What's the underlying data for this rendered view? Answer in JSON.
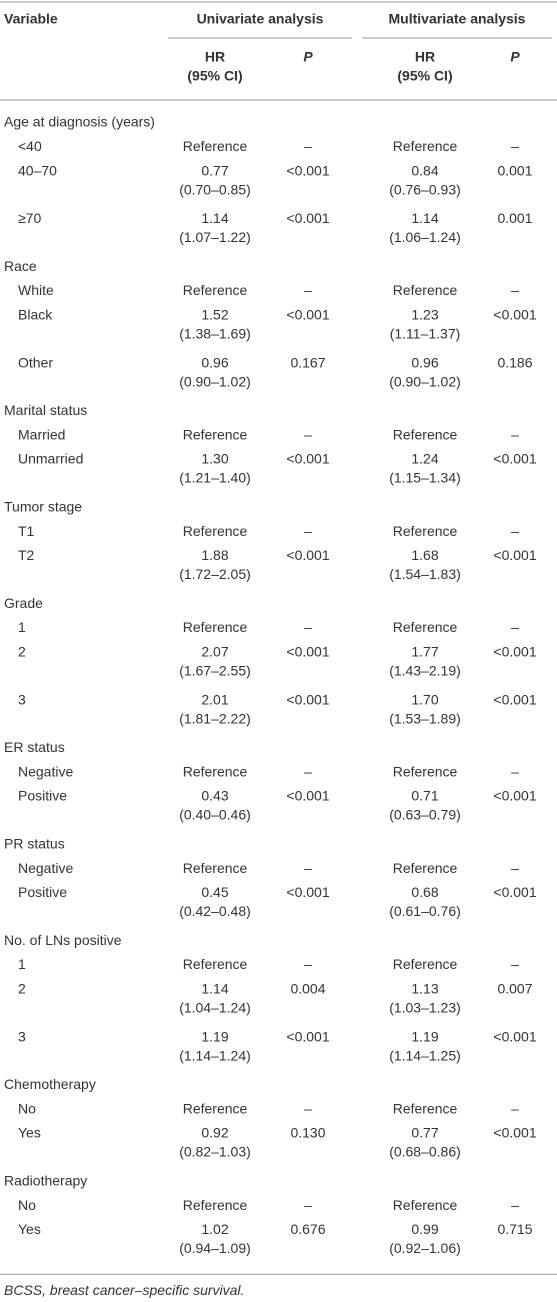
{
  "table": {
    "headers": {
      "variable": "Variable",
      "univariate": "Univariate analysis",
      "multivariate": "Multivariate analysis"
    },
    "subheaders": {
      "univariate": {
        "hr": "HR",
        "ci": "(95% CI)",
        "p": "P"
      },
      "multivariate": {
        "hr": "HR",
        "ci": "(95% CI)",
        "p": "P"
      }
    },
    "groups": [
      {
        "label": "Age at diagnosis (years)",
        "rows": [
          {
            "label": "<40",
            "uni": {
              "hr": "Reference",
              "p": "–"
            },
            "multi": {
              "hr": "Reference",
              "p": "–"
            }
          },
          {
            "label": "40–70",
            "uni": {
              "hr": "0.77",
              "ci": "(0.70–0.85)",
              "p": "<0.001"
            },
            "multi": {
              "hr": "0.84",
              "ci": "(0.76–0.93)",
              "p": "0.001"
            }
          },
          {
            "label": "≥70",
            "uni": {
              "hr": "1.14",
              "ci": "(1.07–1.22)",
              "p": "<0.001"
            },
            "multi": {
              "hr": "1.14",
              "ci": "(1.06–1.24)",
              "p": "0.001"
            }
          }
        ]
      },
      {
        "label": "Race",
        "rows": [
          {
            "label": "White",
            "uni": {
              "hr": "Reference",
              "p": "–"
            },
            "multi": {
              "hr": "Reference",
              "p": "–"
            }
          },
          {
            "label": "Black",
            "uni": {
              "hr": "1.52",
              "ci": "(1.38–1.69)",
              "p": "<0.001"
            },
            "multi": {
              "hr": "1.23",
              "ci": "(1.11–1.37)",
              "p": "<0.001"
            }
          },
          {
            "label": "Other",
            "uni": {
              "hr": "0.96",
              "ci": "(0.90–1.02)",
              "p": "0.167"
            },
            "multi": {
              "hr": "0.96",
              "ci": "(0.90–1.02)",
              "p": "0.186"
            }
          }
        ]
      },
      {
        "label": "Marital status",
        "rows": [
          {
            "label": "Married",
            "uni": {
              "hr": "Reference",
              "p": "–"
            },
            "multi": {
              "hr": "Reference",
              "p": "–"
            }
          },
          {
            "label": "Unmarried",
            "uni": {
              "hr": "1.30",
              "ci": "(1.21–1.40)",
              "p": "<0.001"
            },
            "multi": {
              "hr": "1.24",
              "ci": "(1.15–1.34)",
              "p": "<0.001"
            }
          }
        ]
      },
      {
        "label": "Tumor stage",
        "rows": [
          {
            "label": "T1",
            "uni": {
              "hr": "Reference",
              "p": "–"
            },
            "multi": {
              "hr": "Reference",
              "p": "–"
            }
          },
          {
            "label": "T2",
            "uni": {
              "hr": "1.88",
              "ci": "(1.72–2.05)",
              "p": "<0.001"
            },
            "multi": {
              "hr": "1.68",
              "ci": "(1.54–1.83)",
              "p": "<0.001"
            }
          }
        ]
      },
      {
        "label": "Grade",
        "rows": [
          {
            "label": "1",
            "uni": {
              "hr": "Reference",
              "p": "–"
            },
            "multi": {
              "hr": "Reference",
              "p": "–"
            }
          },
          {
            "label": "2",
            "uni": {
              "hr": "2.07",
              "ci": "(1.67–2.55)",
              "p": "<0.001"
            },
            "multi": {
              "hr": "1.77",
              "ci": "(1.43–2.19)",
              "p": "<0.001"
            }
          },
          {
            "label": "3",
            "uni": {
              "hr": "2.01",
              "ci": "(1.81–2.22)",
              "p": "<0.001"
            },
            "multi": {
              "hr": "1.70",
              "ci": "(1.53–1.89)",
              "p": "<0.001"
            }
          }
        ]
      },
      {
        "label": "ER status",
        "rows": [
          {
            "label": "Negative",
            "uni": {
              "hr": "Reference",
              "p": "–"
            },
            "multi": {
              "hr": "Reference",
              "p": "–"
            }
          },
          {
            "label": "Positive",
            "uni": {
              "hr": "0.43",
              "ci": "(0.40–0.46)",
              "p": "<0.001"
            },
            "multi": {
              "hr": "0.71",
              "ci": "(0.63–0.79)",
              "p": "<0.001"
            }
          }
        ]
      },
      {
        "label": "PR status",
        "rows": [
          {
            "label": "Negative",
            "uni": {
              "hr": "Reference",
              "p": "–"
            },
            "multi": {
              "hr": "Reference",
              "p": "–"
            }
          },
          {
            "label": "Positive",
            "uni": {
              "hr": "0.45",
              "ci": "(0.42–0.48)",
              "p": "<0.001"
            },
            "multi": {
              "hr": "0.68",
              "ci": "(0.61–0.76)",
              "p": "<0.001"
            }
          }
        ]
      },
      {
        "label": "No. of LNs positive",
        "rows": [
          {
            "label": "1",
            "uni": {
              "hr": "Reference",
              "p": "–"
            },
            "multi": {
              "hr": "Reference",
              "p": "–"
            }
          },
          {
            "label": "2",
            "uni": {
              "hr": "1.14",
              "ci": "(1.04–1.24)",
              "p": "0.004"
            },
            "multi": {
              "hr": "1.13",
              "ci": "(1.03–1.23)",
              "p": "0.007"
            }
          },
          {
            "label": "3",
            "uni": {
              "hr": "1.19",
              "ci": "(1.14–1.24)",
              "p": "<0.001"
            },
            "multi": {
              "hr": "1.19",
              "ci": "(1.14–1.25)",
              "p": "<0.001"
            }
          }
        ]
      },
      {
        "label": "Chemotherapy",
        "rows": [
          {
            "label": "No",
            "uni": {
              "hr": "Reference",
              "p": "–"
            },
            "multi": {
              "hr": "Reference",
              "p": "–"
            }
          },
          {
            "label": "Yes",
            "uni": {
              "hr": "0.92",
              "ci": "(0.82–1.03)",
              "p": "0.130"
            },
            "multi": {
              "hr": "0.77",
              "ci": "(0.68–0.86)",
              "p": "<0.001"
            }
          }
        ]
      },
      {
        "label": "Radiotherapy",
        "rows": [
          {
            "label": "No",
            "uni": {
              "hr": "Reference",
              "p": "–"
            },
            "multi": {
              "hr": "Reference",
              "p": "–"
            }
          },
          {
            "label": "Yes",
            "uni": {
              "hr": "1.02",
              "ci": "(0.94–1.09)",
              "p": "0.676"
            },
            "multi": {
              "hr": "0.99",
              "ci": "(0.92–1.06)",
              "p": "0.715"
            }
          }
        ]
      }
    ],
    "footnote": "BCSS, breast cancer–specific survival."
  }
}
